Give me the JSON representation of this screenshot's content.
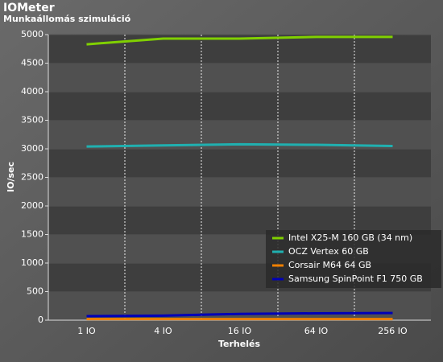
{
  "chart_data": {
    "type": "line",
    "title": "IOMeter",
    "subtitle": "Munkaállomás szimuláció",
    "x_label": "Terhelés",
    "y_label": "IO/sec",
    "categories": [
      "1 IO",
      "4 IO",
      "16 IO",
      "64 IO",
      "256 IO"
    ],
    "series": [
      {
        "name": "Intel X25-M 160 GB (34 nm)",
        "color": "#80d000",
        "values": [
          4830,
          4930,
          4930,
          4960,
          4960
        ]
      },
      {
        "name": "OCZ Vertex 60 GB",
        "color": "#20b0b0",
        "values": [
          3040,
          3060,
          3080,
          3070,
          3050
        ]
      },
      {
        "name": "Corsair M64 64 GB",
        "color": "#f08000",
        "values": [
          20,
          20,
          20,
          20,
          20
        ]
      },
      {
        "name": "Samsung SpinPoint F1 750 GB",
        "color": "#0000b8",
        "values": [
          70,
          80,
          110,
          120,
          125
        ]
      }
    ],
    "ylim": [
      0,
      5000
    ],
    "yticks": [
      0,
      500,
      1000,
      1500,
      2000,
      2500,
      3000,
      3500,
      4000,
      4500,
      5000
    ],
    "grid": true,
    "legend": "right"
  }
}
